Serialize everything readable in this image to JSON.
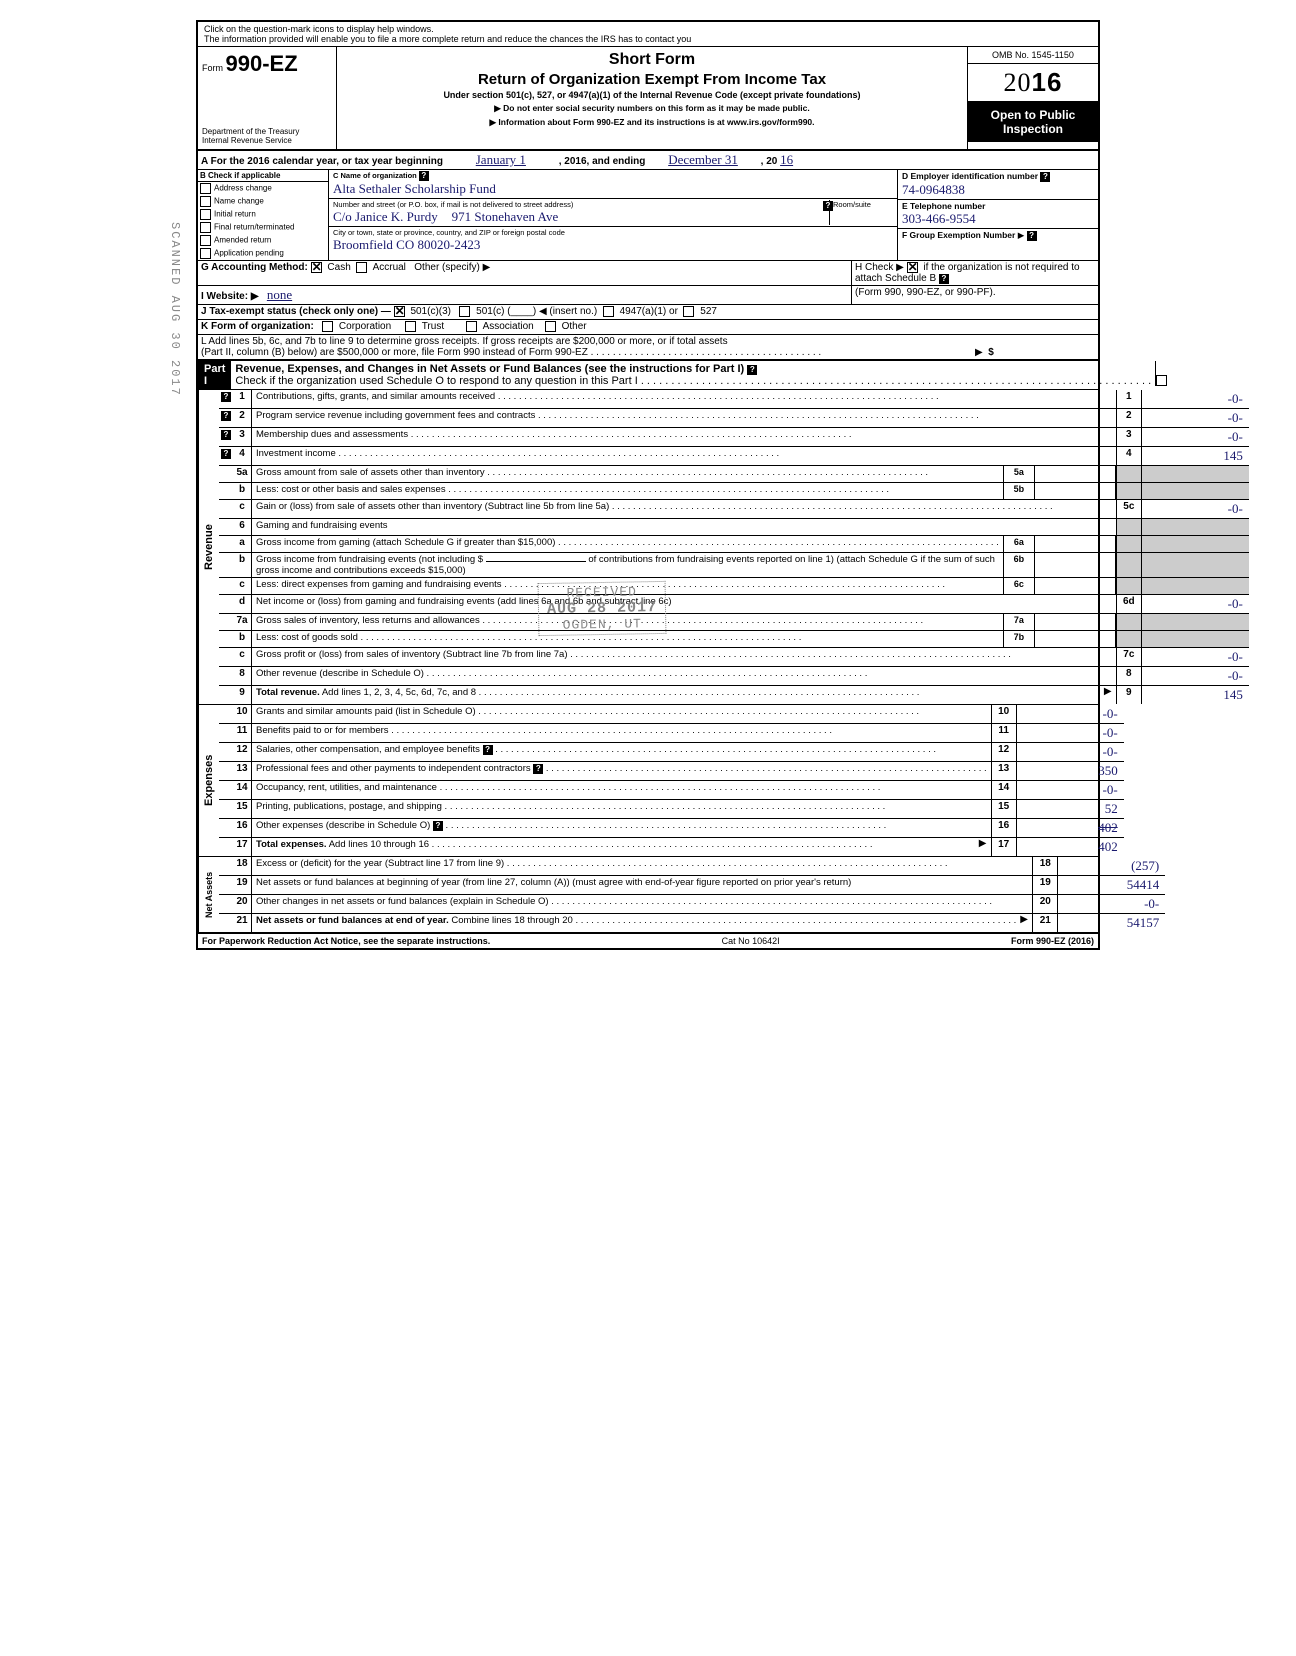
{
  "topNote": {
    "line1": "Click on the question-mark icons to display help windows.",
    "line2": "The information provided will enable you to file a more complete return and reduce the chances the IRS has to contact you"
  },
  "header": {
    "formPrefix": "Form",
    "formNumber": "990-EZ",
    "dept1": "Department of the Treasury",
    "dept2": "Internal Revenue Service",
    "title1": "Short Form",
    "title2": "Return of Organization Exempt From Income Tax",
    "subtitle": "Under section 501(c), 527, or 4947(a)(1) of the Internal Revenue Code (except private foundations)",
    "warn": "Do not enter social security numbers on this form as it may be made public.",
    "info": "Information about Form 990-EZ and its instructions is at www.irs.gov/form990.",
    "omb": "OMB No. 1545-1150",
    "yearPrefix": "20",
    "yearBold": "16",
    "openPublic": "Open to Public Inspection"
  },
  "lineA": {
    "prefix": "A  For the 2016 calendar year, or tax year beginning",
    "begin": "January 1",
    "mid": ", 2016, and ending",
    "end": "December 31",
    "suffix": ", 20",
    "endYear": "16"
  },
  "colB": {
    "header": "B  Check if applicable",
    "items": [
      "Address change",
      "Name change",
      "Initial return",
      "Final return/terminated",
      "Amended return",
      "Application pending"
    ]
  },
  "colC": {
    "nameLabel": "C  Name of organization",
    "name": "Alta Sethaler Scholarship Fund",
    "streetLabel": "Number and street (or P.O. box, if mail is not delivered to street address)",
    "roomLabel": "Room/suite",
    "careOf": "C/o Janice K. Purdy",
    "street": "971 Stonehaven Ave",
    "cityLabel": "City or town, state or province, country, and ZIP or foreign postal code",
    "city": "Broomfield  CO    80020-2423"
  },
  "colD": {
    "einLabel": "D Employer identification number",
    "ein": "74-0964838",
    "phoneLabel": "E  Telephone number",
    "phone": "303-466-9554",
    "groupLabel": "F  Group Exemption Number"
  },
  "rowG": {
    "label": "G  Accounting Method:",
    "opt1": "Cash",
    "opt2": "Accrual",
    "opt3": "Other (specify)"
  },
  "rowH": {
    "text1": "H  Check ▶",
    "text2": "if the organization is not required to attach Schedule B",
    "text3": "(Form 990, 990-EZ, or 990-PF)."
  },
  "rowI": {
    "label": "I   Website: ▶",
    "value": "none"
  },
  "rowJ": {
    "label": "J  Tax-exempt status (check only one) —",
    "opt1": "501(c)(3)",
    "opt2": "501(c) (",
    "opt2b": ") ◀ (insert no.)",
    "opt3": "4947(a)(1) or",
    "opt4": "527"
  },
  "rowK": {
    "label": "K  Form of organization:",
    "opt1": "Corporation",
    "opt2": "Trust",
    "opt3": "Association",
    "opt4": "Other"
  },
  "rowL": {
    "line1": "L  Add lines 5b, 6c, and 7b to line 9 to determine gross receipts. If gross receipts are $200,000 or more, or if total assets",
    "line2": "(Part II, column (B) below) are $500,000 or more, file Form 990 instead of Form 990-EZ",
    "dollar": "$"
  },
  "part1": {
    "label": "Part I",
    "title": "Revenue, Expenses, and Changes in Net Assets or Fund Balances (see the instructions for Part I)",
    "check": "Check if the organization used Schedule O to respond to any question in this Part I"
  },
  "revenueLabel": "Revenue",
  "expensesLabel": "Expenses",
  "netAssetsLabel": "Net Assets",
  "lines": {
    "l1": {
      "n": "1",
      "d": "Contributions, gifts, grants, and similar amounts received",
      "box": "1",
      "v": "-0-",
      "help": true
    },
    "l2": {
      "n": "2",
      "d": "Program service revenue including government fees and contracts",
      "box": "2",
      "v": "-0-",
      "help": true
    },
    "l3": {
      "n": "3",
      "d": "Membership dues and assessments",
      "box": "3",
      "v": "-0-",
      "help": true
    },
    "l4": {
      "n": "4",
      "d": "Investment income",
      "box": "4",
      "v": "145",
      "help": true
    },
    "l5a": {
      "n": "5a",
      "d": "Gross amount from sale of assets other than inventory",
      "ibox": "5a"
    },
    "l5b": {
      "n": "b",
      "d": "Less: cost or other basis and sales expenses",
      "ibox": "5b"
    },
    "l5c": {
      "n": "c",
      "d": "Gain or (loss) from sale of assets other than inventory (Subtract line 5b from line 5a)",
      "box": "5c",
      "v": "-0-"
    },
    "l6": {
      "n": "6",
      "d": "Gaming and fundraising events"
    },
    "l6a": {
      "n": "a",
      "d": "Gross income from gaming (attach Schedule G if greater than $15,000)",
      "ibox": "6a"
    },
    "l6b": {
      "n": "b",
      "d": "Gross income from fundraising events (not including  $",
      "d2": "of contributions from fundraising events reported on line 1) (attach Schedule G if the sum of such gross income and contributions exceeds $15,000)",
      "ibox": "6b"
    },
    "l6c": {
      "n": "c",
      "d": "Less: direct expenses from gaming and fundraising events",
      "ibox": "6c"
    },
    "l6d": {
      "n": "d",
      "d": "Net income or (loss) from gaming and fundraising events (add lines 6a and 6b and subtract line 6c)",
      "box": "6d",
      "v": "-0-"
    },
    "l7a": {
      "n": "7a",
      "d": "Gross sales of inventory, less returns and allowances",
      "ibox": "7a"
    },
    "l7b": {
      "n": "b",
      "d": "Less: cost of goods sold",
      "ibox": "7b"
    },
    "l7c": {
      "n": "c",
      "d": "Gross profit or (loss) from sales of inventory (Subtract line 7b from line 7a)",
      "box": "7c",
      "v": "-0-"
    },
    "l8": {
      "n": "8",
      "d": "Other revenue (describe in Schedule O)",
      "box": "8",
      "v": "-0-"
    },
    "l9": {
      "n": "9",
      "d": "Total revenue. Add lines 1, 2, 3, 4, 5c, 6d, 7c, and 8",
      "box": "9",
      "v": "145",
      "bold": true
    },
    "l10": {
      "n": "10",
      "d": "Grants and similar amounts paid (list in Schedule O)",
      "box": "10",
      "v": "-0-"
    },
    "l11": {
      "n": "11",
      "d": "Benefits paid to or for members",
      "box": "11",
      "v": "-0-"
    },
    "l12": {
      "n": "12",
      "d": "Salaries, other compensation, and employee benefits",
      "box": "12",
      "v": "-0-",
      "helpR": true
    },
    "l13": {
      "n": "13",
      "d": "Professional fees and other payments to independent contractors",
      "box": "13",
      "v": "350",
      "helpR": true
    },
    "l14": {
      "n": "14",
      "d": "Occupancy, rent, utilities, and maintenance",
      "box": "14",
      "v": "-0-"
    },
    "l15": {
      "n": "15",
      "d": "Printing, publications, postage, and shipping",
      "box": "15",
      "v": "52"
    },
    "l16": {
      "n": "16",
      "d": "Other expenses (describe in Schedule O)",
      "box": "16",
      "v": "",
      "strike": "402",
      "helpR": true
    },
    "l17": {
      "n": "17",
      "d": "Total expenses. Add lines 10 through 16",
      "box": "17",
      "v": "402",
      "bold": true
    },
    "l18": {
      "n": "18",
      "d": "Excess or (deficit) for the year (Subtract line 17 from line 9)",
      "box": "18",
      "v": "(257)"
    },
    "l19": {
      "n": "19",
      "d": "Net assets or fund balances at beginning of year (from line 27, column (A)) (must agree with end-of-year figure reported on prior year's return)",
      "box": "19",
      "v": "54414"
    },
    "l20": {
      "n": "20",
      "d": "Other changes in net assets or fund balances (explain in Schedule O)",
      "box": "20",
      "v": "-0-"
    },
    "l21": {
      "n": "21",
      "d": "Net assets or fund balances at end of year. Combine lines 18 through 20",
      "box": "21",
      "v": "54157",
      "bold": true
    }
  },
  "footer": {
    "left": "For Paperwork Reduction Act Notice, see the separate instructions.",
    "mid": "Cat  No  10642I",
    "right": "Form 990-EZ (2016)"
  },
  "stamps": {
    "received": "RECEIVED",
    "date": "AUG 28 2017",
    "ogden": "OGDEN, UT",
    "side": "SCANNED AUG 30 2017"
  }
}
